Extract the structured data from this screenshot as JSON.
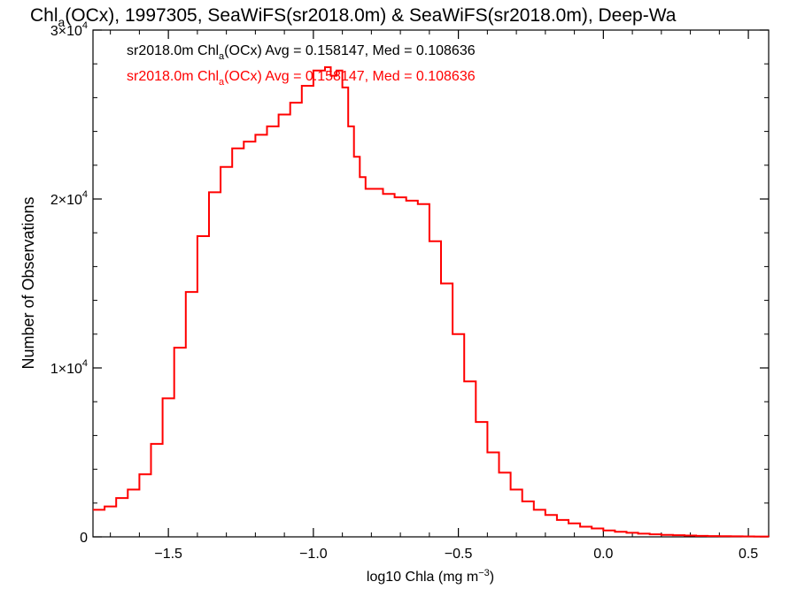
{
  "chart_data": {
    "type": "line",
    "title": "Chl",
    "title_sub": "a",
    "title_rest": "(OCx), 1997305, SeaWiFS(sr2018.0m) & SeaWiFS(sr2018.0m), Deep-Wa",
    "xlabel": "log10 Chla (mg m",
    "xlabel_sup": "−3",
    "xlabel_end": ")",
    "ylabel": "Number of Observations",
    "xlim": [
      -1.76,
      0.57
    ],
    "ylim": [
      0,
      30000
    ],
    "x_ticks": [
      {
        "value": -1.5,
        "label": "−1.5"
      },
      {
        "value": -1.0,
        "label": "−1.0"
      },
      {
        "value": -0.5,
        "label": "−0.5"
      },
      {
        "value": 0.0,
        "label": "0.0"
      },
      {
        "value": 0.5,
        "label": "0.5"
      }
    ],
    "y_ticks": [
      {
        "value": 0,
        "mant": "0",
        "exp": ""
      },
      {
        "value": 10000,
        "mant": "1×10",
        "exp": "4"
      },
      {
        "value": 20000,
        "mant": "2×10",
        "exp": "4"
      },
      {
        "value": 30000,
        "mant": "3×10",
        "exp": "4"
      }
    ],
    "legend": {
      "placement": "top-left",
      "entries": [
        {
          "pre": "sr2018.0m Chl",
          "sub": "a",
          "post": "(OCx) Avg = 0.158147, Med = 0.108636",
          "color": "#000000"
        },
        {
          "pre": "sr2018.0m Chl",
          "sub": "a",
          "post": "(OCx) Avg = 0.158147, Med = 0.108636",
          "color": "#ff0000"
        }
      ]
    },
    "series": [
      {
        "color": "#ff0000",
        "x": [
          -1.76,
          -1.72,
          -1.68,
          -1.64,
          -1.6,
          -1.56,
          -1.52,
          -1.48,
          -1.44,
          -1.4,
          -1.36,
          -1.32,
          -1.28,
          -1.24,
          -1.2,
          -1.16,
          -1.12,
          -1.08,
          -1.04,
          -1.0,
          -0.96,
          -0.94,
          -0.92,
          -0.9,
          -0.88,
          -0.86,
          -0.84,
          -0.82,
          -0.8,
          -0.76,
          -0.72,
          -0.68,
          -0.64,
          -0.6,
          -0.56,
          -0.52,
          -0.48,
          -0.44,
          -0.4,
          -0.36,
          -0.32,
          -0.28,
          -0.24,
          -0.2,
          -0.16,
          -0.12,
          -0.08,
          -0.04,
          0.0,
          0.04,
          0.08,
          0.12,
          0.16,
          0.2,
          0.24,
          0.28,
          0.32,
          0.36,
          0.4,
          0.44,
          0.48,
          0.52,
          0.57
        ],
        "y": [
          1600,
          1800,
          2300,
          2800,
          3700,
          5500,
          8200,
          11200,
          14500,
          17800,
          20400,
          21900,
          23000,
          23400,
          23800,
          24300,
          25000,
          25700,
          26700,
          27600,
          27800,
          27300,
          27600,
          26600,
          24300,
          22500,
          21300,
          20600,
          20600,
          20300,
          20100,
          19900,
          19700,
          17500,
          15000,
          12000,
          9200,
          6800,
          5000,
          3800,
          2800,
          2100,
          1600,
          1300,
          1000,
          800,
          600,
          500,
          380,
          300,
          240,
          190,
          150,
          120,
          100,
          80,
          60,
          45,
          35,
          30,
          25,
          20,
          15
        ]
      }
    ]
  }
}
